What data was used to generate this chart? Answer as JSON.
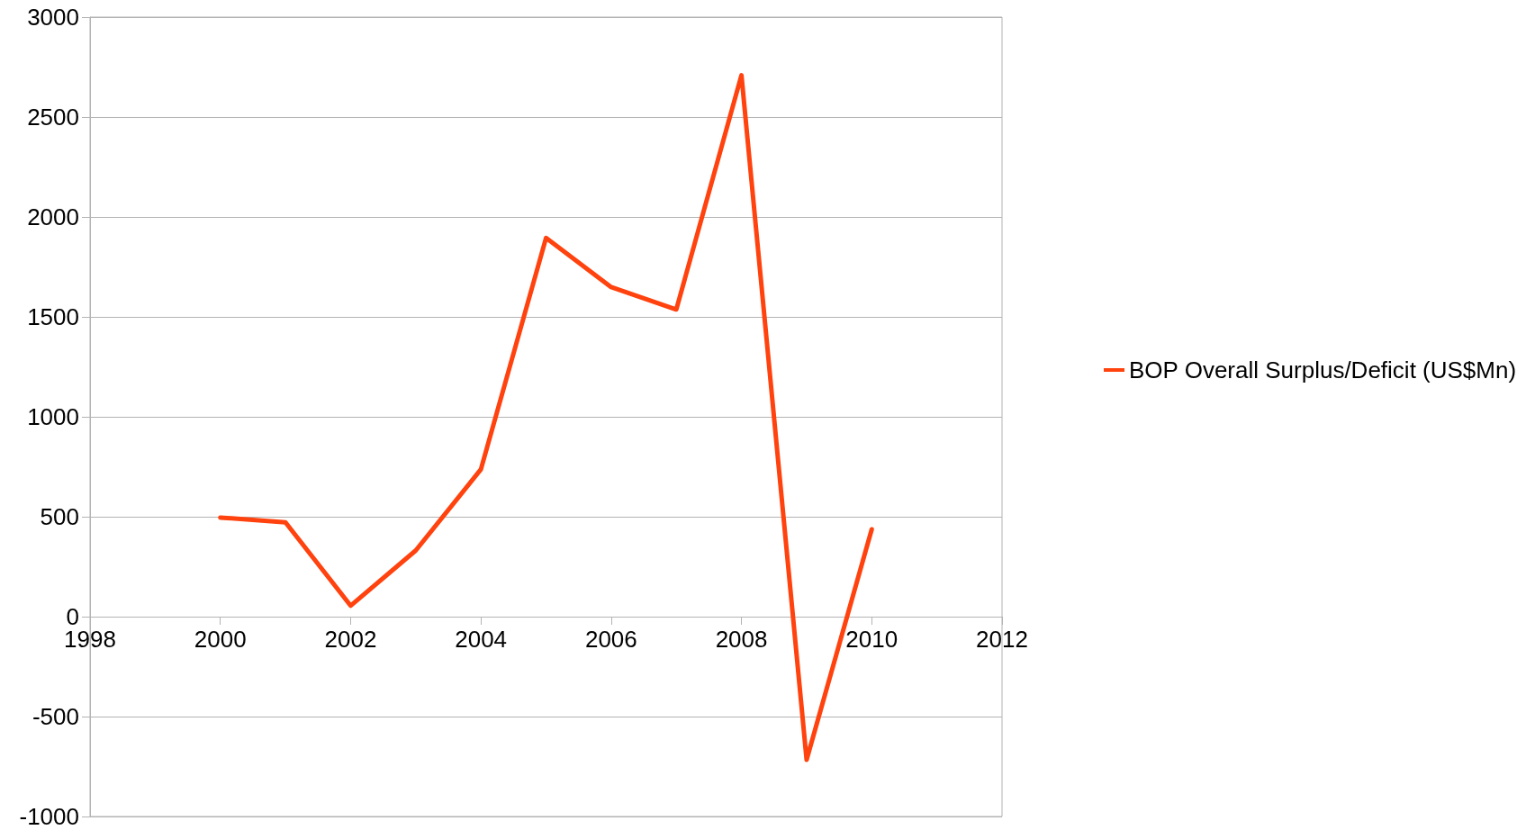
{
  "chart_data": {
    "type": "line",
    "x": [
      2000,
      2001,
      2002,
      2003,
      2004,
      2005,
      2006,
      2007,
      2008,
      2009,
      2010
    ],
    "series": [
      {
        "name": "BOP Overall Surplus/Deficit (US$Mn)",
        "color": "#ff420e",
        "values": [
          496,
          472,
          55,
          331,
          737,
          1895,
          1649,
          1537,
          2709,
          -716,
          437
        ]
      }
    ],
    "xlim": [
      1998,
      2012
    ],
    "xticks": [
      1998,
      2000,
      2002,
      2004,
      2006,
      2008,
      2010,
      2012
    ],
    "ylim": [
      -1000,
      3000
    ],
    "yticks": [
      -1000,
      -500,
      0,
      500,
      1000,
      1500,
      2000,
      2500,
      3000
    ],
    "grid": "y",
    "legend": "right",
    "marker": "none",
    "line_style": "solid"
  }
}
